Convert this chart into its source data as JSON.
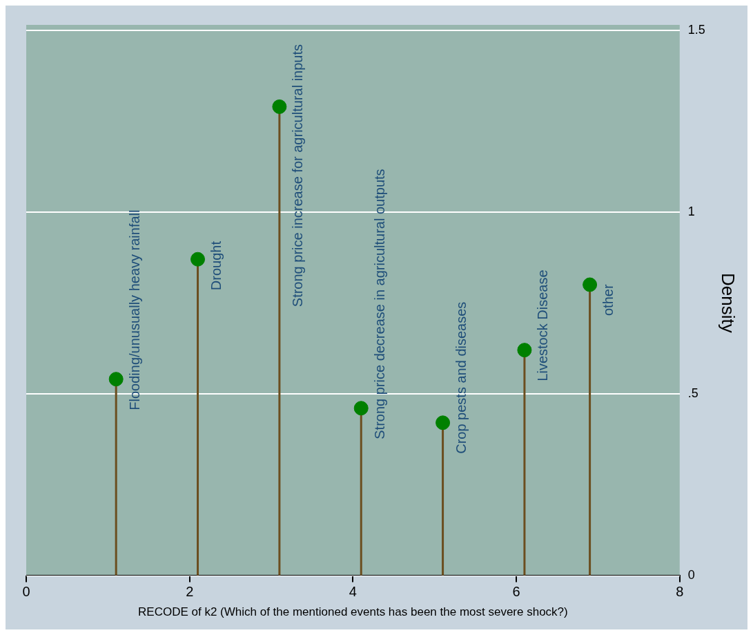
{
  "chart_data": {
    "type": "lollipop",
    "xlabel": "RECODE of k2 (Which of the mentioned events has been the most severe shock?)",
    "ylabel": "Density",
    "x": [
      1.1,
      2.1,
      3.1,
      4.1,
      5.1,
      6.1,
      6.9
    ],
    "series": [
      {
        "color": "#008000",
        "values": [
          0.54,
          0.87,
          1.29,
          0.46,
          0.42,
          0.62,
          0.8
        ]
      }
    ],
    "xlim": [
      0,
      8
    ],
    "xticks": [
      0,
      2,
      4,
      6,
      8
    ],
    "ylim": [
      0,
      1.5
    ],
    "yticks": [
      0,
      {
        "value": 0.5,
        "label": ".5"
      },
      1,
      1.5
    ],
    "grid": "y",
    "marker": "circle",
    "annotations": [
      {
        "text": "Flooding/unusually heavy rainfall",
        "x": 1.1,
        "y": 0.54
      },
      {
        "text": "Drought",
        "x": 2.1,
        "y": 0.87
      },
      {
        "text": "Strong price increase for agricultural inputs",
        "x": 3.1,
        "y": 1.29
      },
      {
        "text": "Strong price decrease in agricultural outputs",
        "x": 4.1,
        "y": 0.46
      },
      {
        "text": "Crop pests and diseases",
        "x": 5.1,
        "y": 0.42
      },
      {
        "text": "Livestock Disease",
        "x": 6.1,
        "y": 0.62
      },
      {
        "text": "other",
        "x": 6.9,
        "y": 0.8
      }
    ]
  }
}
